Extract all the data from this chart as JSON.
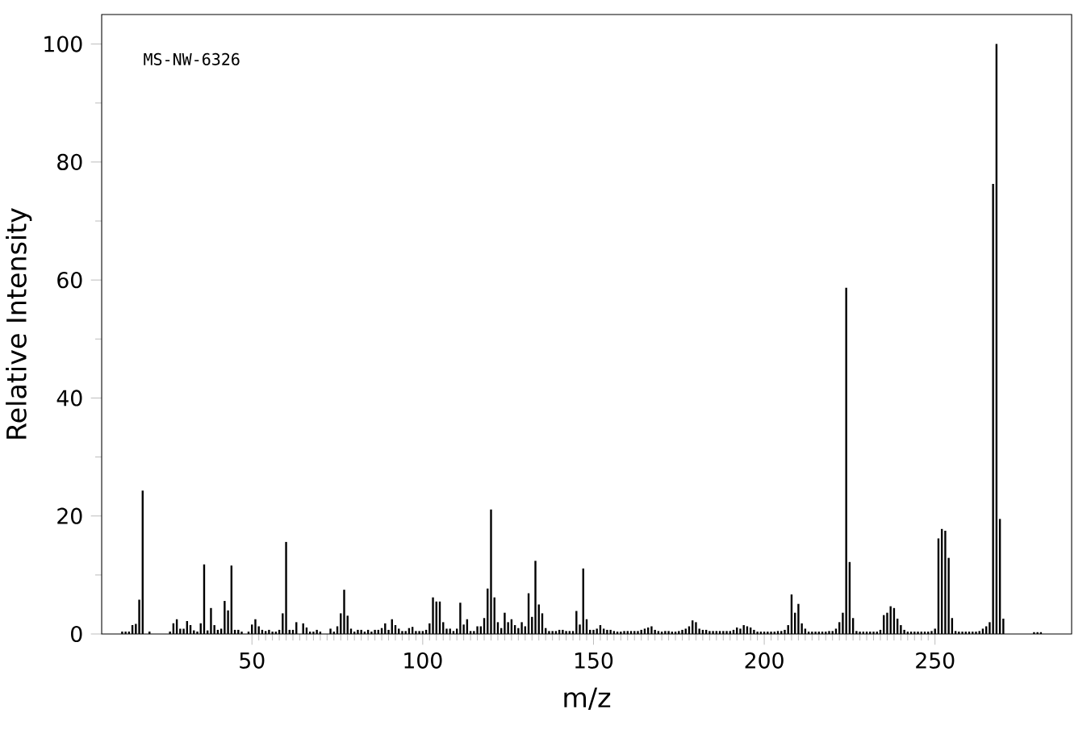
{
  "chart_data": {
    "type": "bar",
    "xlabel": "m/z",
    "ylabel": "Relative Intensity",
    "annotations": [
      "MS-NW-6326"
    ],
    "x": [
      12,
      13,
      14,
      15,
      16,
      17,
      18,
      20,
      26,
      27,
      28,
      29,
      30,
      31,
      32,
      33,
      34,
      35,
      36,
      37,
      38,
      39,
      40,
      41,
      42,
      43,
      44,
      45,
      46,
      47,
      49,
      50,
      51,
      52,
      53,
      54,
      55,
      56,
      57,
      58,
      59,
      60,
      61,
      62,
      63,
      65,
      66,
      67,
      68,
      69,
      70,
      73,
      74,
      75,
      76,
      77,
      78,
      79,
      80,
      81,
      82,
      83,
      84,
      85,
      86,
      87,
      88,
      89,
      90,
      91,
      92,
      93,
      94,
      95,
      96,
      97,
      98,
      99,
      100,
      101,
      102,
      103,
      104,
      105,
      106,
      107,
      108,
      109,
      110,
      111,
      112,
      113,
      114,
      115,
      116,
      117,
      118,
      119,
      120,
      121,
      122,
      123,
      124,
      125,
      126,
      127,
      128,
      129,
      130,
      131,
      132,
      133,
      134,
      135,
      136,
      137,
      138,
      139,
      140,
      141,
      142,
      143,
      144,
      145,
      146,
      147,
      148,
      149,
      150,
      151,
      152,
      153,
      154,
      155,
      156,
      157,
      158,
      159,
      160,
      161,
      162,
      163,
      164,
      165,
      166,
      167,
      168,
      169,
      170,
      171,
      172,
      173,
      174,
      175,
      176,
      177,
      178,
      179,
      180,
      181,
      182,
      183,
      184,
      185,
      186,
      187,
      188,
      189,
      190,
      191,
      192,
      193,
      194,
      195,
      196,
      197,
      198,
      199,
      200,
      201,
      202,
      203,
      204,
      205,
      206,
      207,
      208,
      209,
      210,
      211,
      212,
      213,
      214,
      215,
      216,
      217,
      218,
      219,
      220,
      221,
      222,
      223,
      224,
      225,
      226,
      227,
      228,
      229,
      230,
      231,
      232,
      233,
      234,
      235,
      236,
      237,
      238,
      239,
      240,
      241,
      242,
      243,
      244,
      245,
      246,
      247,
      248,
      249,
      250,
      251,
      252,
      253,
      254,
      255,
      256,
      257,
      258,
      259,
      260,
      261,
      262,
      263,
      264,
      265,
      266,
      267,
      268,
      269,
      270,
      279,
      280,
      281
    ],
    "values": [
      0.4,
      0.4,
      0.4,
      1.5,
      1.7,
      5.8,
      24.3,
      0.4,
      0.4,
      1.8,
      2.5,
      0.9,
      0.9,
      2.2,
      1.5,
      0.6,
      0.4,
      1.8,
      11.8,
      0.6,
      4.4,
      1.5,
      0.7,
      0.9,
      5.6,
      4.0,
      11.6,
      0.7,
      0.7,
      0.4,
      0.4,
      1.6,
      2.5,
      1.3,
      0.7,
      0.5,
      0.7,
      0.4,
      0.4,
      0.7,
      3.5,
      15.6,
      0.7,
      0.7,
      2.0,
      1.8,
      1.1,
      0.4,
      0.4,
      0.7,
      0.4,
      0.9,
      0.4,
      1.3,
      3.5,
      7.5,
      3.1,
      0.9,
      0.4,
      0.7,
      0.7,
      0.4,
      0.7,
      0.4,
      0.7,
      0.7,
      1.0,
      1.8,
      0.7,
      2.5,
      1.5,
      0.9,
      0.5,
      0.5,
      1.0,
      1.2,
      0.5,
      0.5,
      0.5,
      0.7,
      1.8,
      6.2,
      5.5,
      5.5,
      2.0,
      0.9,
      0.9,
      0.5,
      0.9,
      5.3,
      1.6,
      2.5,
      0.5,
      0.5,
      1.3,
      1.3,
      2.7,
      7.7,
      21.1,
      6.2,
      2.0,
      1.0,
      3.6,
      2.0,
      2.5,
      1.5,
      1.0,
      2.0,
      1.3,
      6.9,
      2.9,
      12.4,
      5.0,
      3.5,
      1.0,
      0.5,
      0.5,
      0.5,
      0.7,
      0.7,
      0.5,
      0.5,
      0.5,
      3.9,
      1.6,
      11.1,
      2.5,
      0.7,
      0.7,
      0.9,
      1.5,
      0.9,
      0.7,
      0.7,
      0.5,
      0.4,
      0.4,
      0.5,
      0.5,
      0.5,
      0.5,
      0.5,
      0.7,
      0.9,
      1.1,
      1.3,
      0.7,
      0.5,
      0.4,
      0.5,
      0.5,
      0.4,
      0.4,
      0.5,
      0.7,
      0.9,
      1.3,
      2.3,
      2.0,
      0.9,
      0.7,
      0.7,
      0.5,
      0.5,
      0.5,
      0.5,
      0.5,
      0.5,
      0.5,
      0.7,
      1.1,
      0.9,
      1.5,
      1.3,
      1.1,
      0.7,
      0.4,
      0.4,
      0.4,
      0.4,
      0.4,
      0.4,
      0.5,
      0.5,
      0.7,
      1.5,
      6.7,
      3.6,
      5.1,
      1.8,
      0.9,
      0.4,
      0.4,
      0.4,
      0.4,
      0.4,
      0.4,
      0.5,
      0.5,
      0.9,
      2.0,
      3.6,
      58.7,
      12.2,
      2.7,
      0.5,
      0.4,
      0.4,
      0.4,
      0.4,
      0.4,
      0.4,
      0.7,
      3.2,
      3.6,
      4.7,
      4.4,
      2.6,
      1.5,
      0.7,
      0.4,
      0.4,
      0.4,
      0.4,
      0.4,
      0.4,
      0.4,
      0.5,
      0.9,
      16.2,
      17.8,
      17.5,
      12.9,
      2.7,
      0.5,
      0.4,
      0.4,
      0.4,
      0.4,
      0.4,
      0.4,
      0.5,
      0.9,
      1.3,
      2.0,
      76.3,
      100,
      19.5,
      2.6,
      0.3,
      0.3,
      0.3
    ],
    "color": "#000000",
    "xlim": [
      6,
      290
    ],
    "ylim": [
      0,
      105
    ],
    "xticks": [
      50,
      100,
      150,
      200,
      250
    ],
    "yticks": [
      0,
      20,
      40,
      60,
      80,
      100
    ]
  }
}
